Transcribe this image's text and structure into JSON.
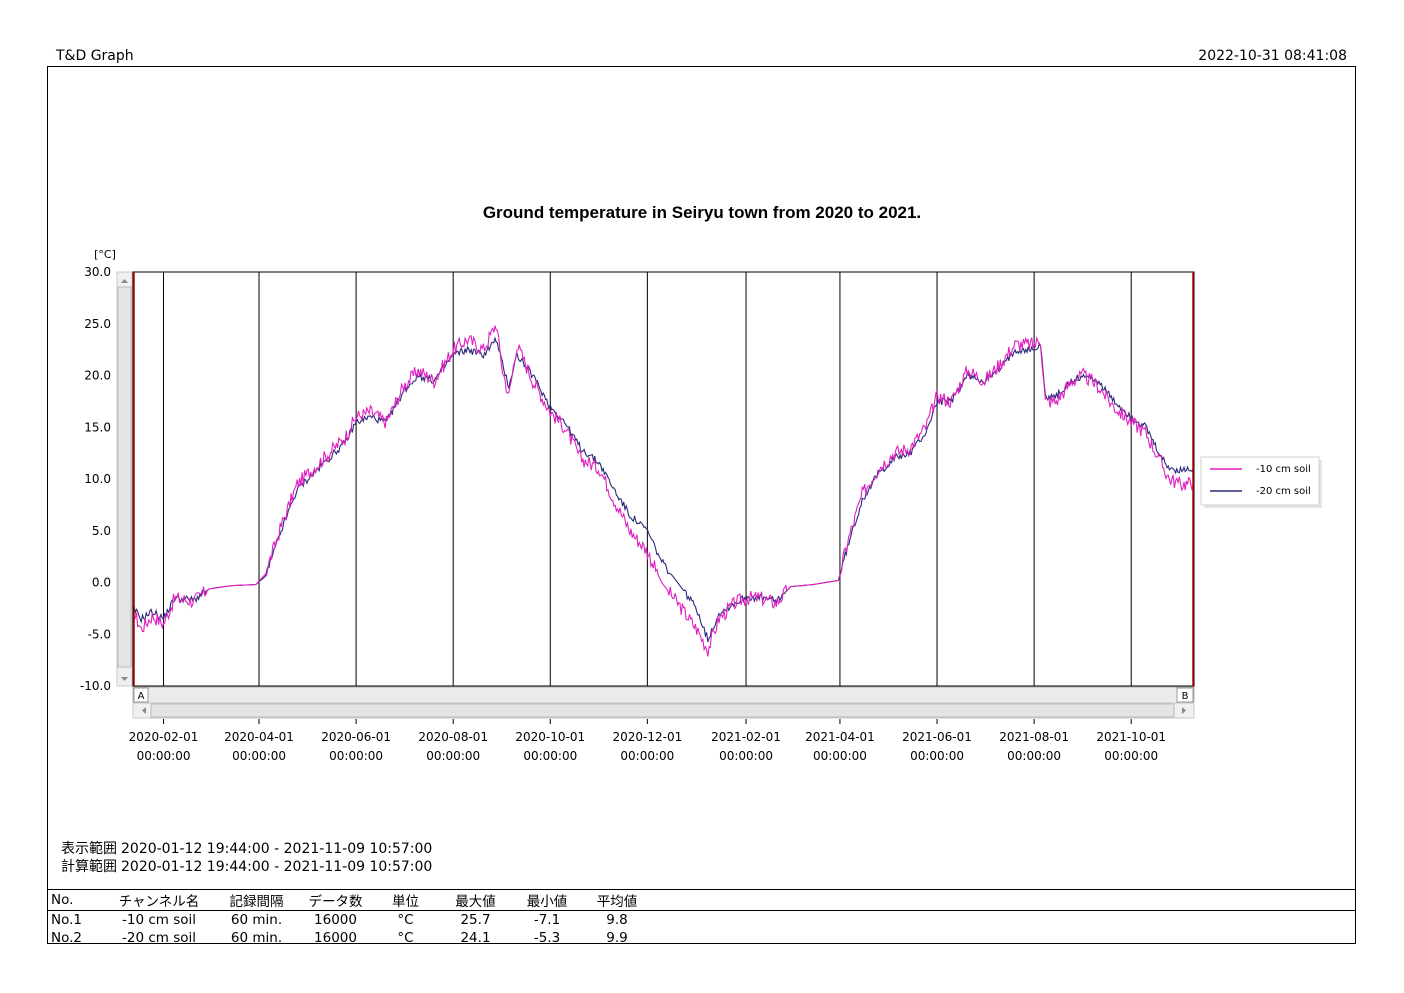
{
  "header": {
    "app_title": "T&D Graph",
    "timestamp": "2022-10-31 08:41:08"
  },
  "chart_data": {
    "type": "line",
    "title": "Ground temperature in Seiryu town from 2020 to 2021.",
    "ylabel": "[°C]",
    "ylim": [
      -10,
      30
    ],
    "y_ticks": [
      "30.0",
      "25.0",
      "20.0",
      "15.0",
      "10.0",
      "5.0",
      "0.0",
      "-5.0",
      "-10.0"
    ],
    "x_range": [
      "2020-01-12 19:44",
      "2021-11-09 10:57"
    ],
    "x_ticks": [
      {
        "date": "2020-02-01",
        "time": "00:00:00"
      },
      {
        "date": "2020-04-01",
        "time": "00:00:00"
      },
      {
        "date": "2020-06-01",
        "time": "00:00:00"
      },
      {
        "date": "2020-08-01",
        "time": "00:00:00"
      },
      {
        "date": "2020-10-01",
        "time": "00:00:00"
      },
      {
        "date": "2020-12-01",
        "time": "00:00:00"
      },
      {
        "date": "2021-02-01",
        "time": "00:00:00"
      },
      {
        "date": "2021-04-01",
        "time": "00:00:00"
      },
      {
        "date": "2021-06-01",
        "time": "00:00:00"
      },
      {
        "date": "2021-08-01",
        "time": "00:00:00"
      },
      {
        "date": "2021-10-01",
        "time": "00:00:00"
      }
    ],
    "cursor_labels": [
      "A",
      "B"
    ],
    "legend_position": "right",
    "grid": "vertical monthly lines",
    "series": [
      {
        "name": "-10 cm soil",
        "color": "#e020c0",
        "x": [
          "2020-01-12",
          "2020-01-18",
          "2020-01-25",
          "2020-02-01",
          "2020-02-08",
          "2020-02-20",
          "2020-03-01",
          "2020-03-15",
          "2020-03-30",
          "2020-04-05",
          "2020-04-15",
          "2020-04-25",
          "2020-05-05",
          "2020-05-15",
          "2020-05-25",
          "2020-06-01",
          "2020-06-10",
          "2020-06-20",
          "2020-07-01",
          "2020-07-10",
          "2020-07-20",
          "2020-08-01",
          "2020-08-10",
          "2020-08-20",
          "2020-08-28",
          "2020-09-01",
          "2020-09-05",
          "2020-09-10",
          "2020-09-20",
          "2020-10-01",
          "2020-10-10",
          "2020-10-20",
          "2020-11-01",
          "2020-11-10",
          "2020-11-20",
          "2020-12-01",
          "2020-12-10",
          "2020-12-20",
          "2021-01-01",
          "2021-01-08",
          "2021-01-15",
          "2021-01-25",
          "2021-02-01",
          "2021-02-10",
          "2021-02-20",
          "2021-03-01",
          "2021-03-15",
          "2021-03-31",
          "2021-04-05",
          "2021-04-15",
          "2021-04-25",
          "2021-05-05",
          "2021-05-15",
          "2021-05-25",
          "2021-06-01",
          "2021-06-10",
          "2021-06-20",
          "2021-07-01",
          "2021-07-10",
          "2021-07-20",
          "2021-08-01",
          "2021-08-05",
          "2021-08-08",
          "2021-08-15",
          "2021-08-25",
          "2021-09-01",
          "2021-09-10",
          "2021-09-20",
          "2021-10-01",
          "2021-10-10",
          "2021-10-20",
          "2021-10-25",
          "2021-11-01",
          "2021-11-09"
        ],
        "y": [
          -2.5,
          -4.5,
          -3.2,
          -4.0,
          -1.5,
          -1.8,
          -0.6,
          -0.3,
          -0.2,
          0.8,
          5.5,
          9.5,
          11.0,
          12.5,
          14.0,
          16.0,
          16.5,
          15.5,
          19.0,
          20.5,
          19.5,
          22.5,
          23.5,
          22.5,
          25.0,
          20.5,
          18.0,
          23.0,
          19.5,
          16.5,
          15.0,
          12.0,
          11.0,
          8.0,
          5.0,
          3.0,
          0.0,
          -2.0,
          -4.5,
          -6.5,
          -3.5,
          -2.0,
          -1.5,
          -1.5,
          -2.0,
          -0.4,
          -0.2,
          0.2,
          3.5,
          8.5,
          11.0,
          12.5,
          13.0,
          15.0,
          18.0,
          17.5,
          20.5,
          19.5,
          21.0,
          23.0,
          23.0,
          23.5,
          17.5,
          17.5,
          19.5,
          20.0,
          19.0,
          17.0,
          15.5,
          14.5,
          11.5,
          10.0,
          9.5,
          9.6
        ]
      },
      {
        "name": "-20 cm soil",
        "color": "#2a2a7a",
        "x": [
          "2020-01-12",
          "2020-01-18",
          "2020-01-25",
          "2020-02-01",
          "2020-02-08",
          "2020-02-20",
          "2020-03-01",
          "2020-03-15",
          "2020-03-30",
          "2020-04-05",
          "2020-04-15",
          "2020-04-25",
          "2020-05-05",
          "2020-05-15",
          "2020-05-25",
          "2020-06-01",
          "2020-06-10",
          "2020-06-20",
          "2020-07-01",
          "2020-07-10",
          "2020-07-20",
          "2020-08-01",
          "2020-08-10",
          "2020-08-20",
          "2020-08-28",
          "2020-09-01",
          "2020-09-05",
          "2020-09-10",
          "2020-09-20",
          "2020-10-01",
          "2020-10-10",
          "2020-10-20",
          "2020-11-01",
          "2020-11-10",
          "2020-11-20",
          "2020-12-01",
          "2020-12-10",
          "2020-12-20",
          "2021-01-01",
          "2021-01-08",
          "2021-01-15",
          "2021-01-25",
          "2021-02-01",
          "2021-02-10",
          "2021-02-20",
          "2021-03-01",
          "2021-03-15",
          "2021-03-31",
          "2021-04-05",
          "2021-04-15",
          "2021-04-25",
          "2021-05-05",
          "2021-05-15",
          "2021-05-25",
          "2021-06-01",
          "2021-06-10",
          "2021-06-20",
          "2021-07-01",
          "2021-07-10",
          "2021-07-20",
          "2021-08-01",
          "2021-08-05",
          "2021-08-08",
          "2021-08-15",
          "2021-08-25",
          "2021-09-01",
          "2021-09-10",
          "2021-09-20",
          "2021-10-01",
          "2021-10-10",
          "2021-10-20",
          "2021-10-25",
          "2021-11-01",
          "2021-11-09"
        ],
        "y": [
          -2.3,
          -3.5,
          -2.8,
          -3.5,
          -1.5,
          -1.7,
          -0.6,
          -0.3,
          -0.2,
          0.6,
          5.0,
          9.0,
          10.5,
          12.0,
          13.5,
          15.5,
          16.0,
          15.5,
          18.5,
          20.0,
          19.5,
          22.0,
          22.5,
          22.0,
          23.5,
          21.0,
          19.0,
          22.0,
          20.0,
          17.0,
          15.5,
          13.0,
          11.5,
          9.0,
          6.5,
          5.0,
          2.0,
          0.0,
          -2.5,
          -5.5,
          -3.0,
          -2.0,
          -1.4,
          -1.5,
          -1.8,
          -0.4,
          -0.2,
          0.2,
          3.0,
          8.0,
          10.5,
          12.0,
          12.5,
          14.5,
          17.5,
          17.5,
          20.0,
          19.5,
          20.5,
          22.5,
          22.5,
          23.0,
          18.0,
          18.0,
          19.5,
          20.0,
          19.5,
          17.5,
          16.0,
          15.0,
          12.0,
          11.0,
          10.8,
          11.0
        ]
      }
    ]
  },
  "range_info": [
    {
      "label": "表示範囲",
      "value": "2020-01-12 19:44:00 - 2021-11-09 10:57:00"
    },
    {
      "label": "計算範囲",
      "value": "2020-01-12 19:44:00 - 2021-11-09 10:57:00"
    }
  ],
  "stats": {
    "headers": [
      "No.",
      "チャンネル名",
      "記録間隔",
      "データ数",
      "単位",
      "最大値",
      "最小値",
      "平均値"
    ],
    "rows": [
      [
        "No.1",
        "-10 cm soil",
        "60 min.",
        "16000",
        "°C",
        "25.7",
        "-7.1",
        "9.8"
      ],
      [
        "No.2",
        "-20 cm soil",
        "60 min.",
        "16000",
        "°C",
        "24.1",
        "-5.3",
        "9.9"
      ]
    ]
  }
}
